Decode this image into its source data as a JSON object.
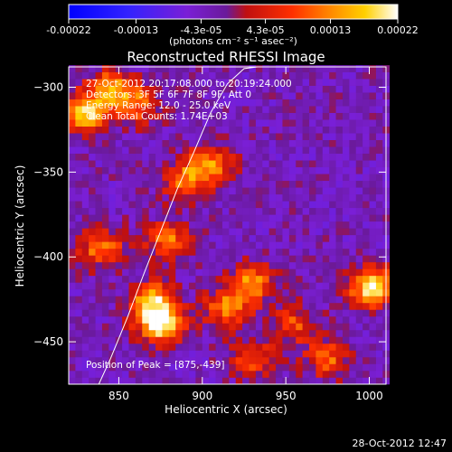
{
  "chart_data": {
    "type": "heatmap",
    "title": "Reconstructed RHESSI Image",
    "xlabel": "Heliocentric X (arcsec)",
    "ylabel": "Heliocentric Y (arcsec)",
    "xlim": [
      820,
      1010
    ],
    "ylim": [
      -475,
      -288
    ],
    "xticks": [
      850,
      900,
      950,
      1000
    ],
    "yticks": [
      -300,
      -350,
      -400,
      -450
    ],
    "colorbar": {
      "colormap": "rainbow-plus-hot (blue-purple-red-orange-yellow-white)",
      "range": [
        -0.00022,
        0.00022
      ],
      "tick_values": [
        -0.00022,
        -0.00013,
        -4.3e-05,
        4.3e-05,
        0.00013,
        0.00022
      ],
      "tick_labels": [
        "-0.00022",
        "-0.00013",
        "-4.3e-05",
        "4.3e-05",
        "0.00013",
        "0.00022"
      ],
      "unit_label": "(photons cm⁻² s⁻¹ asec⁻²)"
    },
    "annotations": {
      "time": "27-Oct-2012 20:17:08.000 to 20:19:24.000",
      "detectors": "Detectors: 3F 5F 6F 7F 8F 9F, Att 0",
      "energy": "Energy Range: 12.0 - 25.0 keV",
      "clean": "Clean    Total Counts: 1.74E+03",
      "peak": "Position of Peak = [875,-439]"
    },
    "limb_curve": {
      "x": [
        838,
        845,
        855,
        865,
        875,
        885,
        895,
        905,
        915,
        925,
        933
      ],
      "y": [
        -475,
        -460,
        -436,
        -410,
        -385,
        -360,
        -338,
        -315,
        -298,
        -289,
        -288
      ]
    },
    "sources": [
      {
        "x": 875,
        "y": -439,
        "intensity": 1.0
      },
      {
        "x": 870,
        "y": -425,
        "intensity": 0.7
      },
      {
        "x": 830,
        "y": -315,
        "intensity": 0.85
      },
      {
        "x": 845,
        "y": -300,
        "intensity": 0.6
      },
      {
        "x": 860,
        "y": -310,
        "intensity": 0.55
      },
      {
        "x": 905,
        "y": -345,
        "intensity": 0.6
      },
      {
        "x": 890,
        "y": -355,
        "intensity": 0.55
      },
      {
        "x": 840,
        "y": -395,
        "intensity": 0.6
      },
      {
        "x": 880,
        "y": -390,
        "intensity": 0.55
      },
      {
        "x": 930,
        "y": -415,
        "intensity": 0.65
      },
      {
        "x": 915,
        "y": -430,
        "intensity": 0.6
      },
      {
        "x": 1002,
        "y": -418,
        "intensity": 0.95
      },
      {
        "x": 955,
        "y": -440,
        "intensity": 0.45
      },
      {
        "x": 930,
        "y": -460,
        "intensity": 0.45
      },
      {
        "x": 975,
        "y": -460,
        "intensity": 0.5
      }
    ]
  },
  "footer": {
    "timestamp": "28-Oct-2012 12:47"
  }
}
